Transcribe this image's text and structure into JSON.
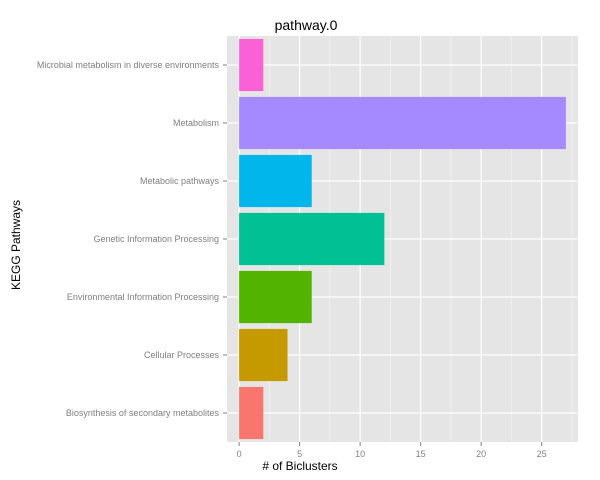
{
  "chart_data": {
    "type": "bar",
    "orientation": "horizontal",
    "title": "pathway.0",
    "xlabel": "# of Biclusters",
    "ylabel": "KEGG Pathways",
    "categories": [
      "Biosynthesis of secondary metabolites",
      "Cellular Processes",
      "Environmental Information Processing",
      "Genetic Information Processing",
      "Metabolic pathways",
      "Metabolism",
      "Microbial metabolism in diverse environments"
    ],
    "values": [
      2,
      4,
      6,
      12,
      6,
      27,
      2
    ],
    "colors": [
      "#F8766D",
      "#C49A00",
      "#53B400",
      "#00C094",
      "#00B6EB",
      "#A58AFF",
      "#FB61D7"
    ],
    "xlim": [
      -1,
      28
    ],
    "xticks": [
      0,
      5,
      10,
      15,
      20,
      25
    ],
    "grid": true,
    "legend": "none",
    "panel_background": "#E5E5E5",
    "grid_color": "#FFFFFF"
  }
}
